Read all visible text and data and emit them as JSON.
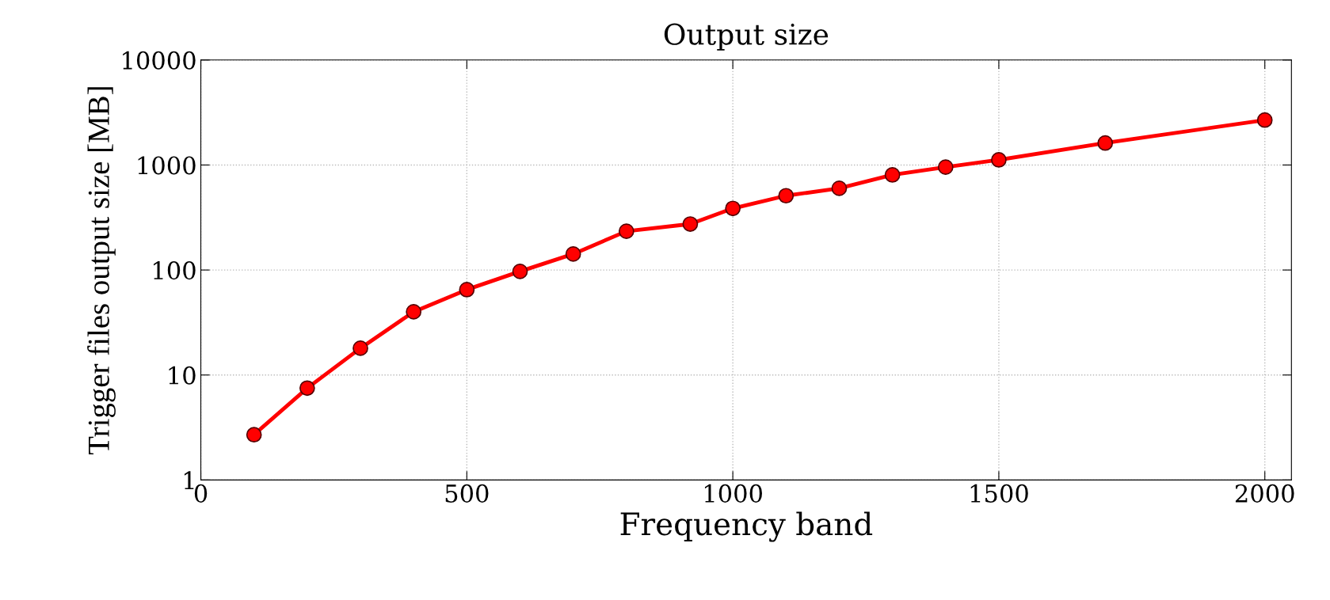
{
  "chart_data": {
    "type": "line",
    "title": "Output size",
    "xlabel": "Frequency band",
    "ylabel": "Trigger files output size [MB]",
    "x": [
      100,
      200,
      300,
      400,
      500,
      600,
      700,
      800,
      920,
      1000,
      1100,
      1200,
      1300,
      1400,
      1500,
      1700,
      2000
    ],
    "series": [
      {
        "color": "#ff0000",
        "values": [
          2.7,
          7.5,
          18,
          40,
          65,
          97,
          142,
          234,
          274,
          386,
          510,
          600,
          805,
          955,
          1120,
          1620,
          2680
        ]
      }
    ],
    "log": "y",
    "xlim": [
      0,
      2050
    ],
    "ylim": [
      1,
      10000
    ],
    "xticks": [
      0,
      500,
      1000,
      1500,
      2000
    ],
    "yticks": [
      1,
      10,
      100,
      1000,
      10000
    ],
    "grid": true,
    "marker": "circle",
    "line_style": "solid",
    "legend": false
  }
}
